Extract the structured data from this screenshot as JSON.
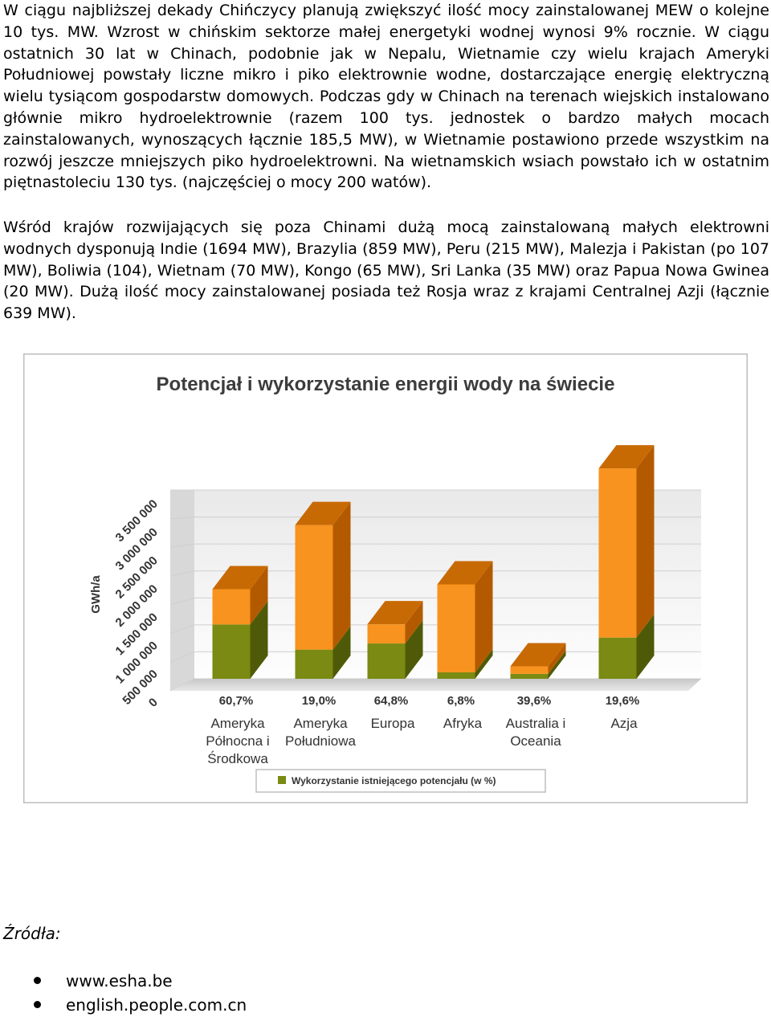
{
  "paragraphs": [
    "W ciągu najbliższej dekady Chińczycy planują zwiększyć ilość mocy zainstalowanej MEW o kolejne 10 tys. MW. Wzrost w chińskim sektorze małej energetyki wodnej wynosi 9% rocznie. W ciągu ostatnich 30 lat w Chinach, podobnie jak w Nepalu, Wietnamie czy wielu krajach Ameryki Południowej powstały liczne mikro i piko elektrownie wodne, dostarczające energię elektryczną wielu tysiącom gospodarstw domowych. Podczas gdy w Chinach na terenach wiejskich instalowano głównie mikro hydroelektrownie (razem 100 tys. jednostek o bardzo małych mocach zainstalowanych, wynoszących łącznie 185,5 MW), w Wietnamie postawiono przede wszystkim na rozwój jeszcze mniejszych piko hydroelektrowni. Na wietnamskich wsiach powstało ich w ostatnim piętnastoleciu 130 tys. (najczęściej o mocy 200 watów).",
    "Wśród krajów rozwijających się poza Chinami dużą mocą zainstalowaną małych elektrowni wodnych dysponują Indie (1694 MW), Brazylia (859 MW), Peru (215 MW), Malezja i Pakistan (po 107 MW), Boliwia (104), Wietnam (70 MW), Kongo (65 MW), Sri Lanka (35 MW) oraz Papua Nowa Gwinea (20 MW). Dużą ilość mocy zainstalowanej posiada też Rosja wraz z krajami Centralnej Azji (łącznie 639 MW)."
  ],
  "chart_data": {
    "type": "bar",
    "title": "Potencjał i wykorzystanie energii wody na świecie",
    "ylabel": "GWh/a",
    "ylim": [
      0,
      3500000
    ],
    "yticks": [
      "0",
      "500 000",
      "1 000 000",
      "1 500 000",
      "2 000 000",
      "2 500 000",
      "3 000 000",
      "3 500 000"
    ],
    "categories": [
      [
        "Ameryka",
        "Północna i",
        "Środkowa"
      ],
      [
        "Ameryka",
        "Południowa"
      ],
      [
        "Europa"
      ],
      [
        "Afryka"
      ],
      [
        "Australia i",
        "Oceania"
      ],
      [
        "Azja"
      ]
    ],
    "potential": [
      1660000,
      2850000,
      1010000,
      1750000,
      230000,
      3900000
    ],
    "utilization_pct": [
      60.7,
      19.0,
      64.8,
      6.8,
      39.6,
      19.6
    ],
    "pct_labels": [
      "60,7%",
      "19,0%",
      "64,8%",
      "6,8%",
      "39,6%",
      "19,6%"
    ],
    "legend": "Wykorzystanie istniejącego potencjału (w %)",
    "colors": {
      "potential": "#f7931e",
      "used": "#7a8a12",
      "side": "#b35a00",
      "top": "#c86a04"
    }
  },
  "sources": {
    "label": "Źródła:",
    "items": [
      "www.esha.be",
      "english.people.com.cn"
    ]
  }
}
